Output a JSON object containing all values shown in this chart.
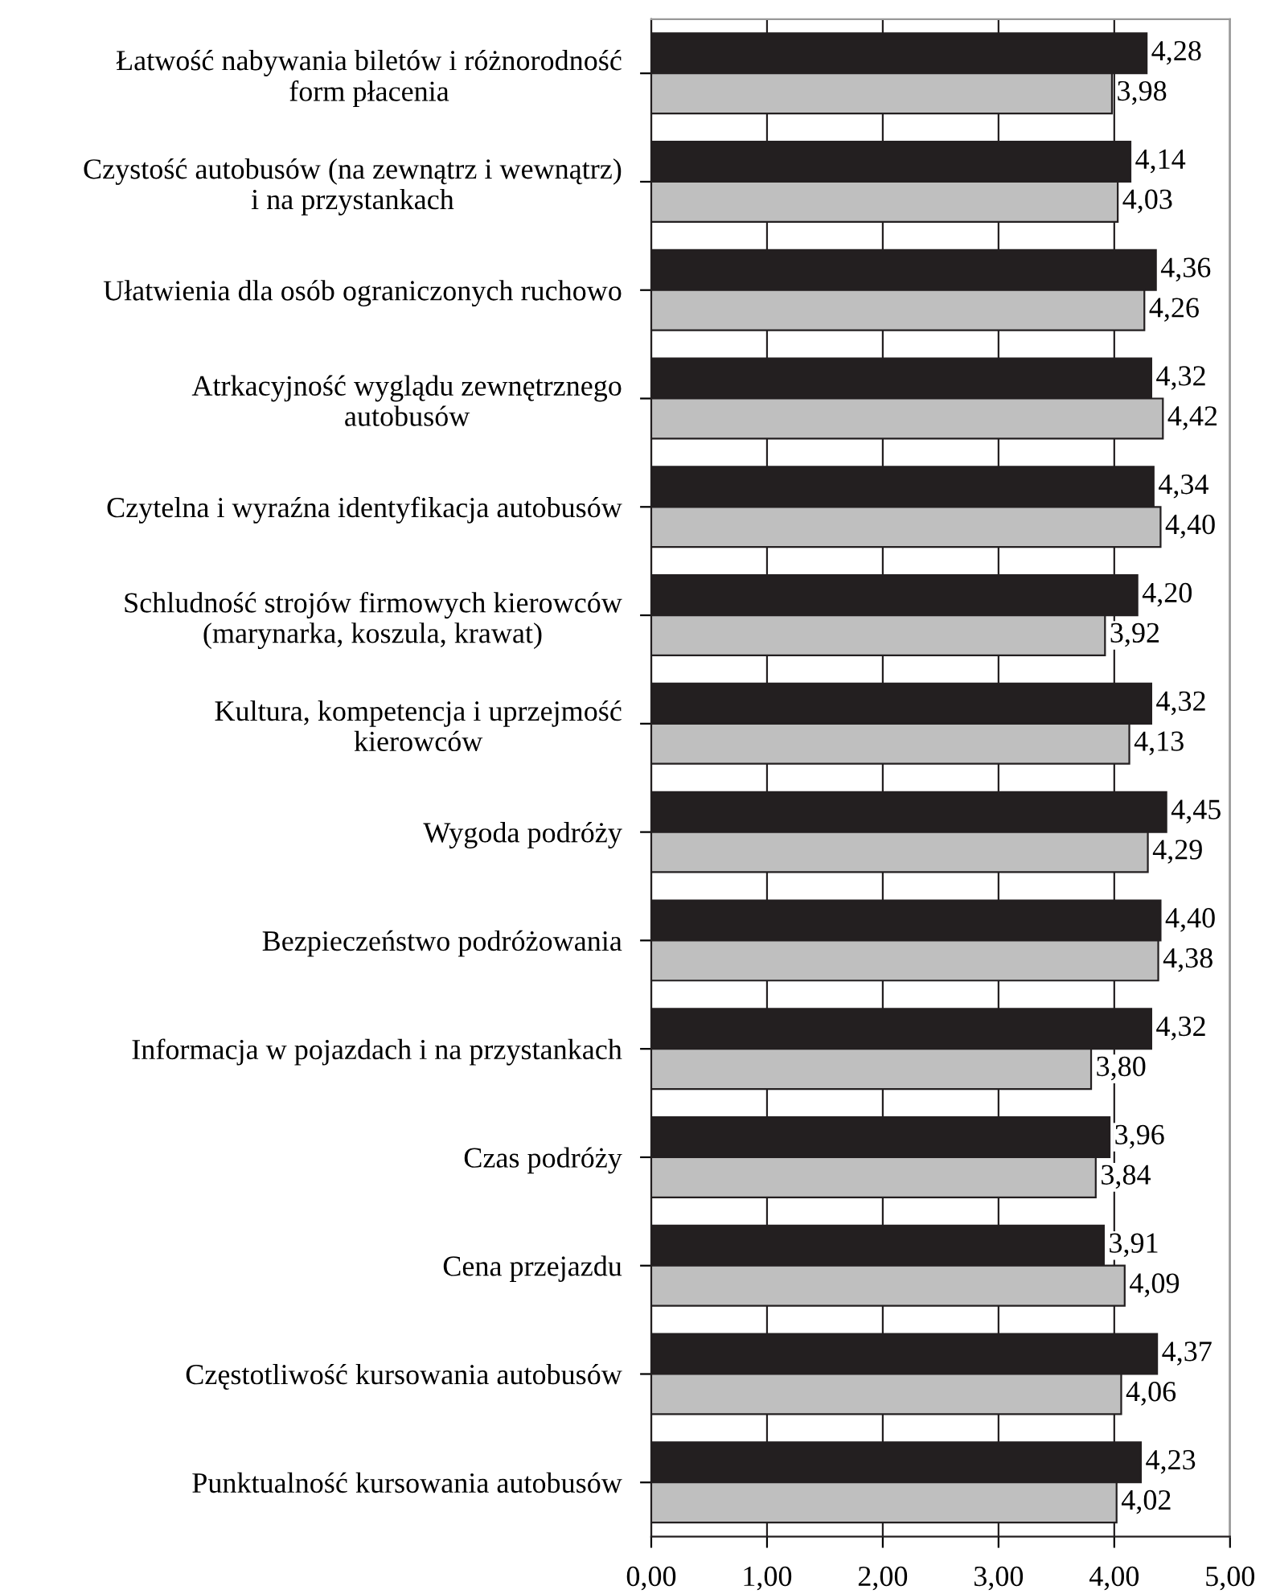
{
  "chart_data": {
    "type": "bar",
    "orientation": "horizontal",
    "categories": [
      "Łatwość nabywania biletów i różnorodność\nform płacenia",
      "Czystość autobusów (na zewnątrz i wewnątrz)\ni na przystankach",
      "Ułatwienia dla osób ograniczonych ruchowo",
      "Atrkacyjność wyglądu zewnętrznego\nautobusów",
      "Czytelna i wyraźna identyfikacja autobusów",
      "Schludność strojów firmowych kierowców\n(marynarka, koszula, krawat)",
      "Kultura, kompetencja i uprzejmość\nkierowców",
      "Wygoda podróży",
      "Bezpieczeństwo podróżowania",
      "Informacja w pojazdach i na przystankach",
      "Czas podróży",
      "Cena przejazdu",
      "Częstotliwość kursowania autobusów",
      "Punktualność kursowania autobusów"
    ],
    "series": [
      {
        "color": "#231f20",
        "values": [
          4.28,
          4.14,
          4.36,
          4.32,
          4.34,
          4.2,
          4.32,
          4.45,
          4.4,
          4.32,
          3.96,
          3.91,
          4.37,
          4.23
        ],
        "value_labels": [
          "4,28",
          "4,14",
          "4,36",
          "4,32",
          "4,34",
          "4,20",
          "4,32",
          "4,45",
          "4,40",
          "4,32",
          "3,96",
          "3,91",
          "4,37",
          "4,23"
        ]
      },
      {
        "color": "#bfbfbf",
        "values": [
          3.98,
          4.03,
          4.26,
          4.42,
          4.4,
          3.92,
          4.13,
          4.29,
          4.38,
          3.8,
          3.84,
          4.09,
          4.06,
          4.02
        ],
        "value_labels": [
          "3,98",
          "4,03",
          "4,26",
          "4,42",
          "4,40",
          "3,92",
          "4,13",
          "4,29",
          "4,38",
          "3,80",
          "3,84",
          "4,09",
          "4,06",
          "4,02"
        ]
      }
    ],
    "xlim": [
      0,
      5
    ],
    "xticks": [
      {
        "value": 0,
        "label": "0,00"
      },
      {
        "value": 1,
        "label": "1,00"
      },
      {
        "value": 2,
        "label": "2,00"
      },
      {
        "value": 3,
        "label": "3,00"
      },
      {
        "value": 4,
        "label": "4,00"
      },
      {
        "value": 5,
        "label": "5,00"
      }
    ],
    "grid": "x"
  }
}
